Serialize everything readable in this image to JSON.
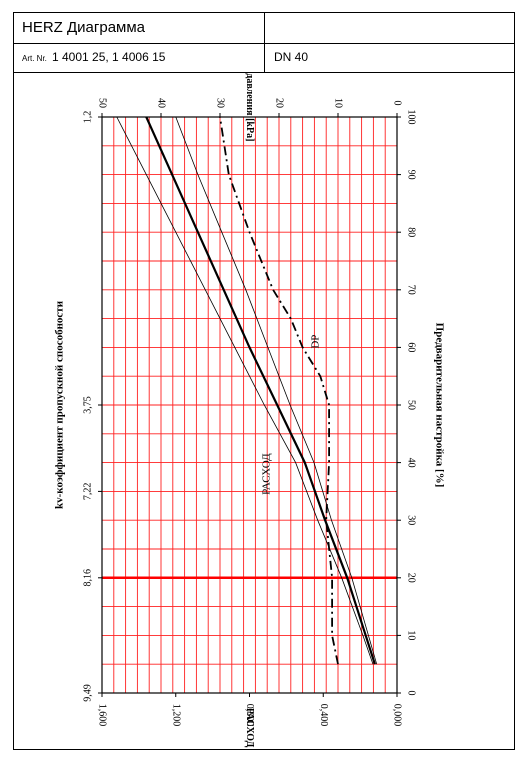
{
  "header": {
    "title": "HERZ Диаграмма",
    "art_label": "Art. Nr.",
    "art_value": "1 4001 25, 1 4006 15",
    "dn": "DN 40"
  },
  "chart_data": {
    "type": "line",
    "orientation": "rotated-90",
    "grid": true,
    "axes": {
      "bottom": {
        "label": "РАСХОД [l/s]",
        "ticks": [
          "1,600",
          "1,200",
          "0,800",
          "0,400",
          "0,000"
        ],
        "range": [
          1.6,
          0.0
        ]
      },
      "top": {
        "label": "Падение давления [kPa]",
        "ticks": [
          "50",
          "40",
          "30",
          "20",
          "10",
          "0"
        ],
        "range": [
          50,
          0
        ]
      },
      "right": {
        "label": "Предварительная настройка [%]",
        "ticks": [
          "0",
          "10",
          "20",
          "30",
          "40",
          "50",
          "60",
          "70",
          "80",
          "90",
          "100"
        ],
        "range": [
          0,
          100
        ]
      },
      "left": {
        "label": "kv-коэффициент пропускной способности",
        "ticks": [
          "1,2",
          "3,75",
          "7,22",
          "8,16",
          "9,49"
        ]
      }
    },
    "highlight_setting": 20,
    "series": [
      {
        "name": "РАСХОД",
        "unit": "l/s",
        "style": "solid",
        "x_setting": [
          5,
          10,
          20,
          30,
          40,
          50,
          60,
          70,
          80,
          90,
          100
        ],
        "y_flow": [
          0.12,
          0.17,
          0.27,
          0.39,
          0.5,
          0.65,
          0.8,
          0.94,
          1.08,
          1.22,
          1.36
        ]
      },
      {
        "name": "",
        "unit": "l/s",
        "style": "thin",
        "x_setting": [
          5,
          10,
          20,
          30,
          40,
          50,
          60,
          70,
          80,
          90,
          100
        ],
        "y_flow": [
          0.11,
          0.155,
          0.245,
          0.355,
          0.45,
          0.58,
          0.7,
          0.82,
          0.95,
          1.08,
          1.2
        ]
      },
      {
        "name": "",
        "unit": "l/s",
        "style": "thin",
        "x_setting": [
          5,
          10,
          20,
          30,
          40,
          50,
          60,
          70,
          80,
          90,
          100
        ],
        "y_flow": [
          0.13,
          0.185,
          0.3,
          0.43,
          0.55,
          0.72,
          0.88,
          1.04,
          1.2,
          1.36,
          1.52
        ]
      },
      {
        "name": "DP",
        "unit": "kPa",
        "style": "dash-dot",
        "x_setting": [
          5,
          10,
          20,
          30,
          40,
          50,
          55,
          60,
          65,
          70,
          80,
          90,
          100
        ],
        "y_kpa": [
          10,
          11,
          11,
          12,
          11.5,
          11.5,
          13,
          16,
          18,
          21,
          25,
          28.5,
          30
        ]
      }
    ]
  }
}
